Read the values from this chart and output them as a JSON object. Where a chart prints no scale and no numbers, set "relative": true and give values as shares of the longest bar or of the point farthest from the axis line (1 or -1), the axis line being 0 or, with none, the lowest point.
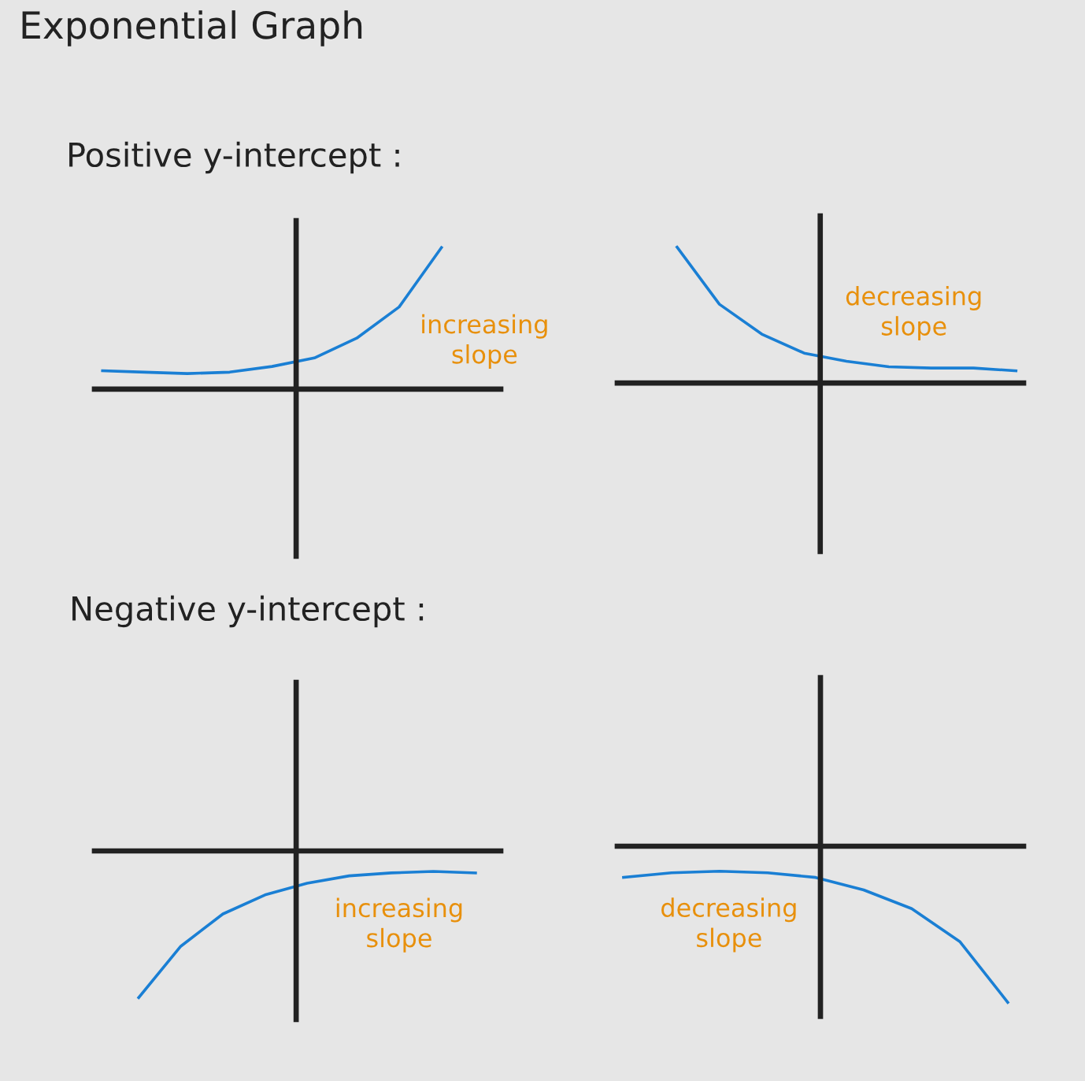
{
  "chart_data": [
    {
      "type": "line",
      "title": "Exponential Graph",
      "subtitle": "Positive y-intercept :",
      "relative": true,
      "categories": [
        null,
        null,
        null,
        null,
        null,
        null,
        null,
        null,
        null
      ],
      "series": [
        {
          "color": "#1a7fd4",
          "values": [
            0.13,
            0.12,
            0.11,
            0.12,
            0.16,
            0.22,
            0.36,
            0.58,
            1
          ]
        }
      ],
      "annotations": [
        "increasing slope"
      ]
    },
    {
      "type": "line",
      "relative": true,
      "categories": [
        null,
        null,
        null,
        null,
        null,
        null,
        null,
        null,
        null
      ],
      "series": [
        {
          "color": "#1a7fd4",
          "values": [
            1,
            0.58,
            0.36,
            0.22,
            0.16,
            0.12,
            0.11,
            0.11,
            0.09
          ]
        }
      ],
      "annotations": [
        "decreasing slope"
      ]
    },
    {
      "type": "line",
      "subtitle": "Negative y-intercept :",
      "relative": true,
      "categories": [
        null,
        null,
        null,
        null,
        null,
        null,
        null,
        null,
        null
      ],
      "series": [
        {
          "color": "#1a7fd4",
          "values": [
            -1,
            -0.65,
            -0.43,
            -0.3,
            -0.22,
            -0.17,
            -0.15,
            -0.14,
            -0.15
          ]
        }
      ],
      "annotations": [
        "increasing slope"
      ]
    },
    {
      "type": "line",
      "relative": true,
      "categories": [
        null,
        null,
        null,
        null,
        null,
        null,
        null,
        null,
        null
      ],
      "series": [
        {
          "color": "#1a7fd4",
          "values": [
            -0.2,
            -0.17,
            -0.16,
            -0.17,
            -0.2,
            -0.28,
            -0.4,
            -0.61,
            -1
          ]
        }
      ],
      "annotations": [
        "decreasing slope"
      ]
    }
  ]
}
